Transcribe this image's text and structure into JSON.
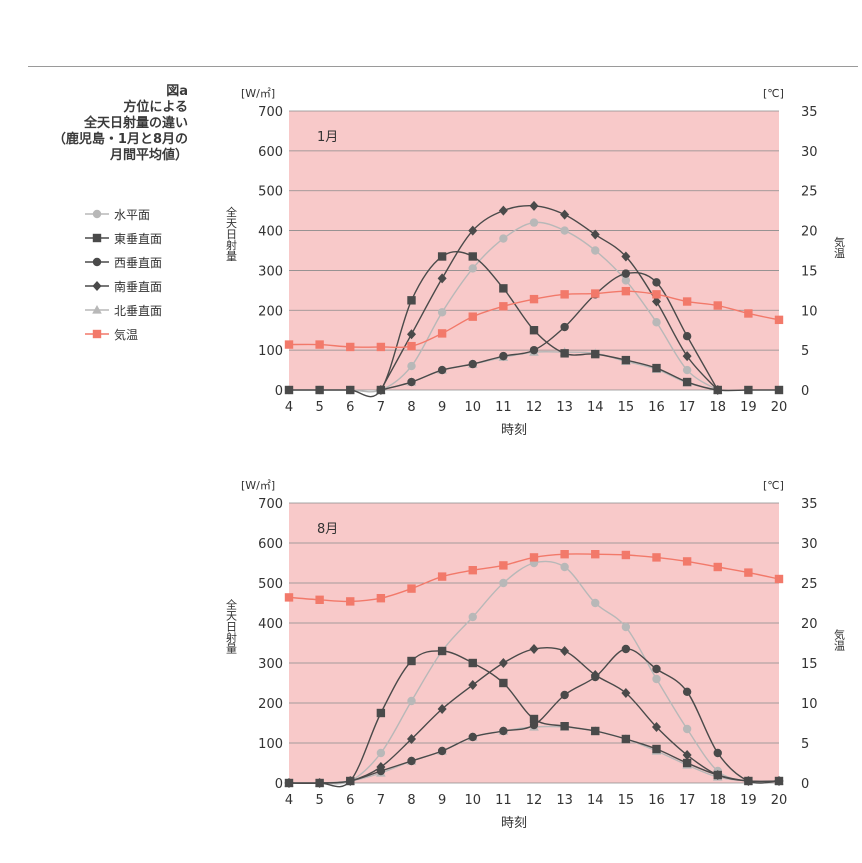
{
  "figure": {
    "caption_lines": [
      "図a",
      "方位による",
      "全天日射量の違い",
      "（鹿児島・1月と8月の",
      "月間平均値）"
    ]
  },
  "legend": [
    {
      "name": "水平面",
      "marker": "circle",
      "color": "#b8b8b8"
    },
    {
      "name": "東垂直面",
      "marker": "square",
      "color": "#4a4a4a"
    },
    {
      "name": "西垂直面",
      "marker": "circle",
      "color": "#4a4a4a"
    },
    {
      "name": "南垂直面",
      "marker": "diamond",
      "color": "#4a4a4a"
    },
    {
      "name": "北垂直面",
      "marker": "triangle",
      "color": "#b8b8b8"
    },
    {
      "name": "気温",
      "marker": "square",
      "color": "#f2796a"
    }
  ],
  "colors": {
    "plot_bg": "#f8c9c9",
    "grid": "#8a8a8a",
    "temp": "#f2796a",
    "dark": "#4a4a4a",
    "light": "#b8b8b8"
  },
  "chart_data": [
    {
      "type": "line",
      "title": "1月",
      "y_unit_left": "[W/㎡]",
      "y_unit_right": "[℃]",
      "ylabel": "全天日射量",
      "y2label": "気温",
      "xlabel": "時刻",
      "x": [
        4,
        5,
        6,
        7,
        8,
        9,
        10,
        11,
        12,
        13,
        14,
        15,
        16,
        17,
        18,
        19,
        20
      ],
      "ylim": [
        0,
        700
      ],
      "y_ticks": [
        0,
        100,
        200,
        300,
        400,
        500,
        600,
        700
      ],
      "y2lim": [
        0,
        35
      ],
      "y2_ticks": [
        0,
        5,
        10,
        15,
        20,
        25,
        30,
        35
      ],
      "grid": true,
      "series": [
        {
          "name": "水平面",
          "axis": "left",
          "values": [
            0,
            0,
            0,
            0,
            60,
            195,
            305,
            380,
            420,
            400,
            350,
            275,
            170,
            50,
            0,
            null,
            null
          ]
        },
        {
          "name": "東垂直面",
          "axis": "left",
          "values": [
            0,
            0,
            0,
            0,
            225,
            335,
            335,
            255,
            150,
            92,
            90,
            75,
            55,
            20,
            0,
            0,
            0
          ]
        },
        {
          "name": "西垂直面",
          "axis": "left",
          "values": [
            null,
            null,
            null,
            0,
            20,
            50,
            65,
            85,
            100,
            158,
            240,
            292,
            270,
            135,
            0,
            null,
            null
          ]
        },
        {
          "name": "南垂直面",
          "axis": "left",
          "values": [
            null,
            null,
            null,
            0,
            140,
            280,
            400,
            450,
            462,
            440,
            390,
            335,
            222,
            85,
            0,
            null,
            null
          ]
        },
        {
          "name": "北垂直面",
          "axis": "left",
          "values": [
            null,
            null,
            null,
            0,
            20,
            50,
            65,
            82,
            95,
            95,
            92,
            72,
            52,
            18,
            0,
            null,
            null
          ]
        },
        {
          "name": "気温",
          "axis": "right",
          "values": [
            5.7,
            5.7,
            5.4,
            5.4,
            5.5,
            7.1,
            9.2,
            10.5,
            11.4,
            12.0,
            12.1,
            12.4,
            12.0,
            11.1,
            10.6,
            9.6,
            8.8
          ]
        }
      ]
    },
    {
      "type": "line",
      "title": "8月",
      "y_unit_left": "[W/㎡]",
      "y_unit_right": "[℃]",
      "ylabel": "全天日射量",
      "y2label": "気温",
      "xlabel": "時刻",
      "x": [
        4,
        5,
        6,
        7,
        8,
        9,
        10,
        11,
        12,
        13,
        14,
        15,
        16,
        17,
        18,
        19,
        20
      ],
      "ylim": [
        0,
        700
      ],
      "y_ticks": [
        0,
        100,
        200,
        300,
        400,
        500,
        600,
        700
      ],
      "y2lim": [
        0,
        35
      ],
      "y2_ticks": [
        0,
        5,
        10,
        15,
        20,
        25,
        30,
        35
      ],
      "grid": true,
      "series": [
        {
          "name": "水平面",
          "axis": "left",
          "values": [
            0,
            0,
            5,
            75,
            205,
            330,
            415,
            500,
            550,
            540,
            450,
            390,
            260,
            135,
            30,
            5,
            5
          ]
        },
        {
          "name": "東垂直面",
          "axis": "left",
          "values": [
            0,
            0,
            5,
            175,
            305,
            330,
            300,
            250,
            160,
            142,
            130,
            110,
            85,
            50,
            20,
            5,
            5
          ]
        },
        {
          "name": "西垂直面",
          "axis": "left",
          "values": [
            0,
            0,
            5,
            30,
            55,
            80,
            115,
            130,
            145,
            220,
            265,
            335,
            285,
            228,
            75,
            5,
            5
          ]
        },
        {
          "name": "南垂直面",
          "axis": "left",
          "values": [
            0,
            0,
            5,
            40,
            110,
            185,
            245,
            300,
            335,
            330,
            270,
            225,
            140,
            70,
            20,
            5,
            5
          ]
        },
        {
          "name": "北垂直面",
          "axis": "left",
          "values": [
            0,
            0,
            5,
            25,
            55,
            80,
            115,
            130,
            140,
            140,
            130,
            110,
            80,
            45,
            15,
            5,
            5
          ]
        },
        {
          "name": "気温",
          "axis": "right",
          "values": [
            23.2,
            22.9,
            22.7,
            23.1,
            24.3,
            25.8,
            26.6,
            27.2,
            28.2,
            28.6,
            28.6,
            28.5,
            28.2,
            27.7,
            27.0,
            26.3,
            25.5
          ]
        }
      ]
    }
  ]
}
